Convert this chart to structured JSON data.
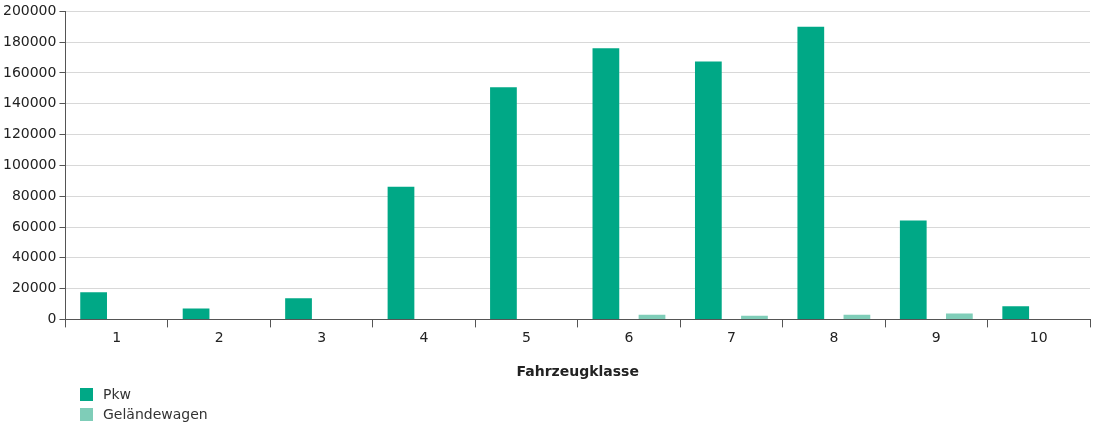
{
  "chart_data": {
    "type": "bar",
    "xlabel": "Fahrzeugklasse",
    "categories": [
      "1",
      "2",
      "3",
      "4",
      "5",
      "6",
      "7",
      "8",
      "9",
      "10"
    ],
    "series": [
      {
        "name": "Pkw",
        "color": "#00a886",
        "values": [
          17700,
          7000,
          13800,
          86100,
          150800,
          176000,
          167400,
          190000,
          64300,
          8500
        ]
      },
      {
        "name": "Geländewagen",
        "color": "#7fcdb8",
        "values": [
          0,
          0,
          0,
          0,
          0,
          3000,
          2300,
          3000,
          3800,
          0
        ]
      }
    ],
    "ylim": [
      0,
      200000
    ],
    "yticks": [
      0,
      20000,
      40000,
      60000,
      80000,
      100000,
      120000,
      140000,
      160000,
      180000,
      200000
    ],
    "grid": "y",
    "legend": "bottom left"
  }
}
